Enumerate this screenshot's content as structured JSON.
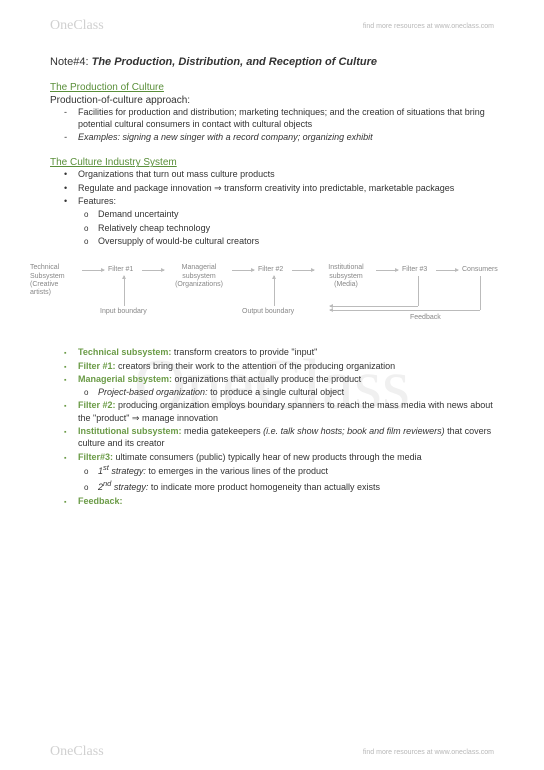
{
  "header": {
    "logo": "OneClass",
    "tagline": "find more resources at www.oneclass.com"
  },
  "watermark": "OneClass",
  "note": {
    "label": "Note#4:",
    "title": "The Production, Distribution, and Reception of Culture"
  },
  "section1": {
    "heading": "The Production of Culture",
    "subhead": "Production-of-culture approach:",
    "items": [
      "Facilities for production and distribution; marketing techniques; and the creation of situations that bring potential cultural consumers in contact with cultural objects",
      "Examples: signing a new singer with a record company; organizing exhibit"
    ]
  },
  "section2": {
    "heading": "The Culture Industry System",
    "items": [
      "Organizations that turn out mass culture products",
      "Regulate and package innovation ⇒ transform creativity into predictable, marketable packages",
      "Features:"
    ],
    "features": [
      "Demand uncertainty",
      "Relatively cheap technology",
      "Oversupply of would-be cultural creators"
    ]
  },
  "diagram": {
    "nodes": {
      "tech": "Technical\nSubsystem\n(Creative\nartists)",
      "f1": "Filter #1",
      "mgr": "Managerial\nsubsystem\n(Organizations)",
      "f2": "Filter #2",
      "inst": "Institutional\nsubsystem\n(Media)",
      "f3": "Filter #3",
      "cons": "Consumers"
    },
    "labels": {
      "inb": "Input boundary",
      "outb": "Output boundary",
      "fb": "Feedback"
    },
    "colors": {
      "line": "#bbbbbb",
      "text": "#888888"
    }
  },
  "defs": [
    {
      "term": "Technical subsystem:",
      "text": " transform creators to provide \"input\""
    },
    {
      "term": "Filter #1:",
      "text": " creators bring their work to the attention of the producing organization"
    },
    {
      "term": "Managerial sbsystem:",
      "text": " organizations that actually produce the product",
      "sub": [
        {
          "ital": "Project-based organization:",
          "text": " to produce a single cultural object"
        }
      ]
    },
    {
      "term": "Filter #2:",
      "text": " producing organization employs boundary spanners to reach the mass media with news about the \"product\" ⇒ manage innovation"
    },
    {
      "term": "Institutional subsystem:",
      "text": " media gatekeepers (i.e. talk show hosts; book and film reviewers) that covers culture and its creator",
      "italText": true
    },
    {
      "term": "Filter#3:",
      "text": " ultimate consumers (public) typically hear of new products through the media",
      "sub": [
        {
          "ital": "1st strategy:",
          "sup": "st",
          "text": " to emerges in the various lines of the product"
        },
        {
          "ital": "2nd strategy:",
          "sup": "nd",
          "text": " to indicate more product homogeneity than actually exists"
        }
      ]
    },
    {
      "term": "Feedback:",
      "text": ""
    }
  ],
  "footer": {
    "logo": "OneClass",
    "tagline": "find more resources at www.oneclass.com"
  }
}
